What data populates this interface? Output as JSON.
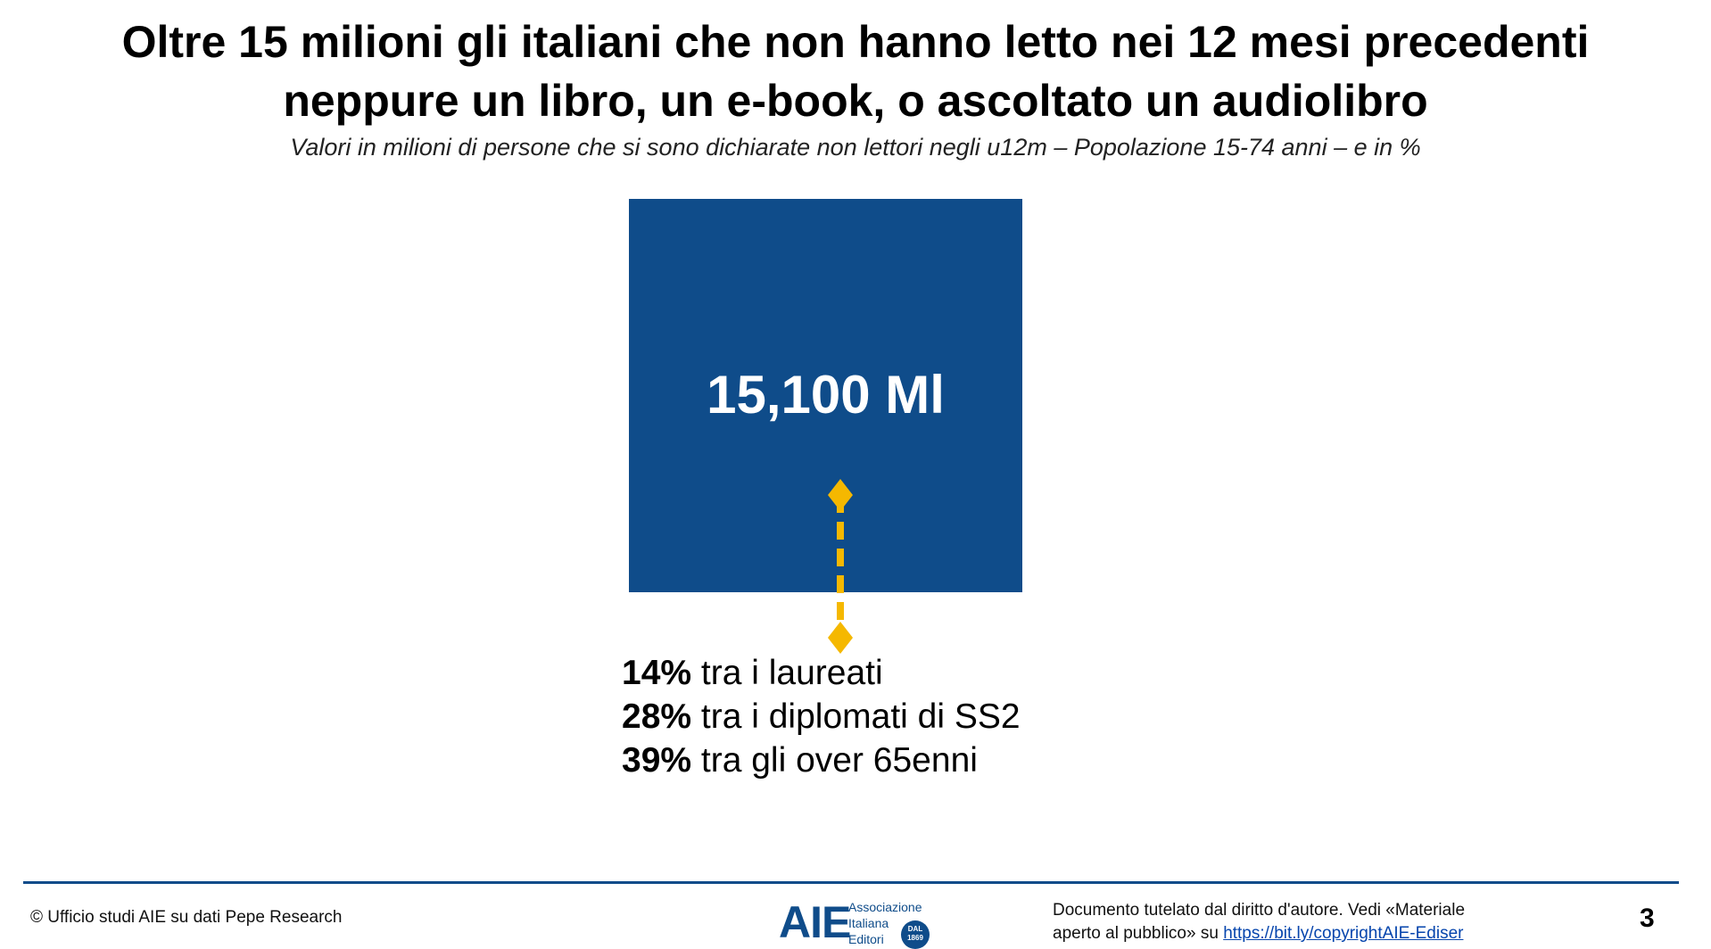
{
  "title": {
    "line1": "Oltre 15 milioni gli italiani che non hanno letto nei 12 mesi precedenti",
    "line2": "neppure un libro, un e-book, o ascoltato un audiolibro"
  },
  "subtitle": "Valori in milioni di persone che si sono dichiarate non lettori negli u12m – Popolazione 15-74 anni – e in %",
  "highlight": {
    "value": "15,100 Ml",
    "box_color": "#0f4c8a",
    "arrow_color": "#f5b800"
  },
  "stats": [
    {
      "percent": "14%",
      "text": " tra i laureati"
    },
    {
      "percent": "28%",
      "text": " tra i diplomati di SS2"
    },
    {
      "percent": "39%",
      "text": " tra gli over 65enni"
    }
  ],
  "footer": {
    "source": "© Ufficio studi AIE su dati Pepe Research",
    "logo": {
      "mark": "AIE",
      "line1": "Associazione",
      "line2": "Italiana",
      "line3": "Editori",
      "badge_line1": "DAL",
      "badge_line2": "1869"
    },
    "notice_line1": "Documento tutelato dal diritto d'autore. Vedi «Materiale",
    "notice_line2_prefix": "aperto al pubblico» su ",
    "notice_link": "https://bit.ly/copyrightAIE-Ediser",
    "page_number": "3"
  }
}
